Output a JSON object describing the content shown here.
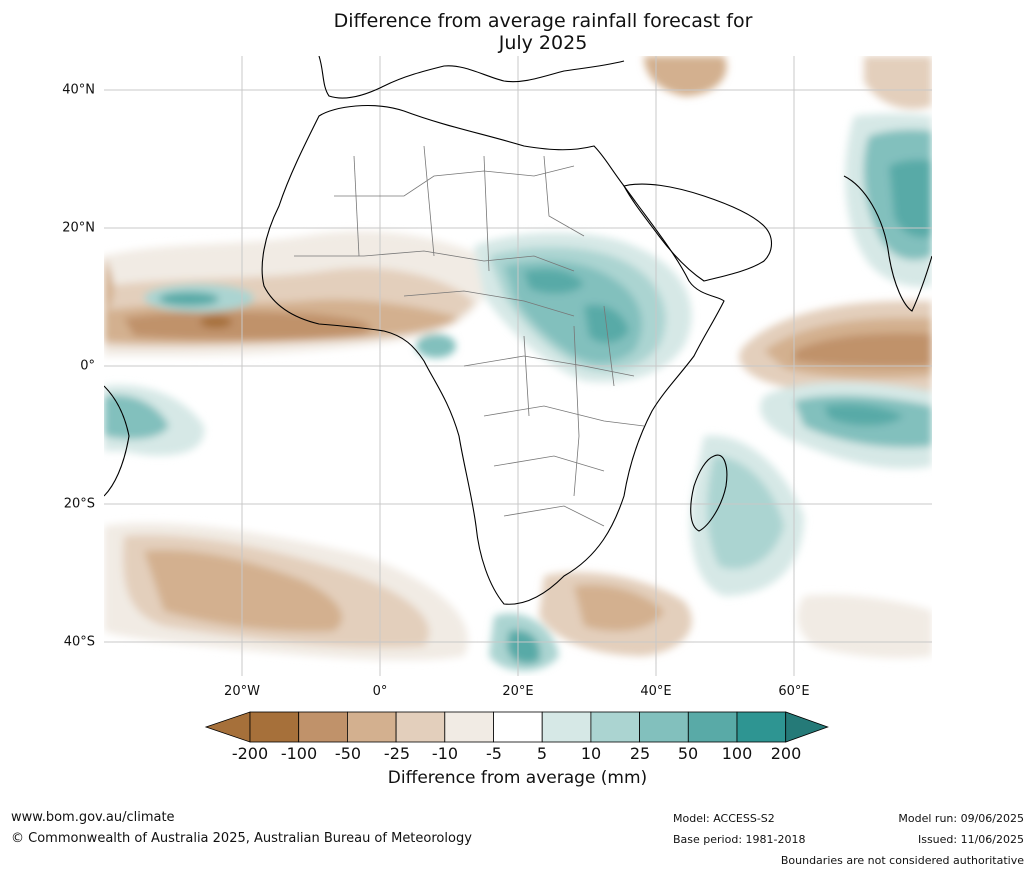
{
  "title_line1": "Difference from average rainfall forecast for",
  "title_line2": "July 2025",
  "lat_labels": [
    "40°N",
    "20°N",
    "0°",
    "20°S",
    "40°S"
  ],
  "lon_labels": [
    "20°W",
    "0°",
    "20°E",
    "40°E",
    "60°E"
  ],
  "colorbar": {
    "title": "Difference from average (mm)",
    "ticks": [
      "-200",
      "-100",
      "-50",
      "-25",
      "-10",
      "-5",
      "5",
      "10",
      "25",
      "50",
      "100",
      "200"
    ],
    "colors": [
      "#a6703a",
      "#c0926a",
      "#d3b08f",
      "#e3cfbc",
      "#f1ebe4",
      "#ffffff",
      "#d6e8e6",
      "#abd4d1",
      "#82c0bd",
      "#59aaa7",
      "#2e9592",
      "#257a78"
    ]
  },
  "footer": {
    "website": "www.bom.gov.au/climate",
    "copyright": "© Commonwealth of Australia 2025, Australian Bureau of Meteorology",
    "model": "Model: ACCESS-S2",
    "base_period": "Base period: 1981-2018",
    "model_run": "Model run: 09/06/2025",
    "issued": "Issued: 11/06/2025",
    "disclaimer": "Boundaries are not considered authoritative"
  }
}
